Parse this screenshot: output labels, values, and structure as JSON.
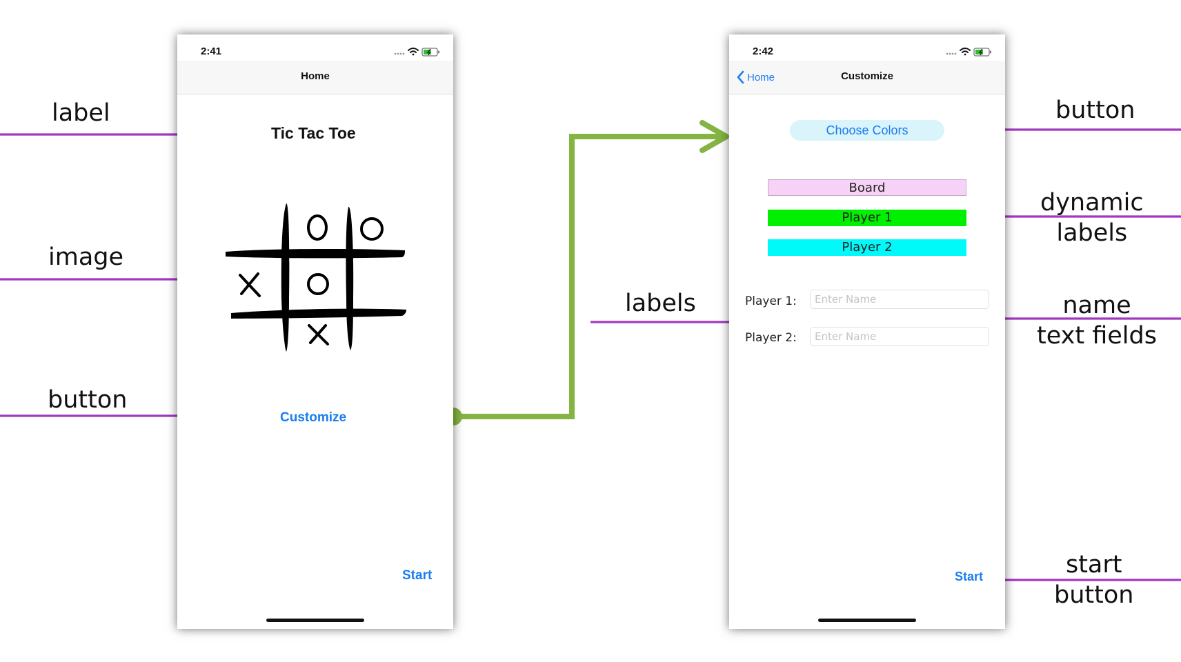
{
  "home_screen": {
    "status_time": "2:41",
    "nav_title": "Home",
    "app_title": "Tic Tac Toe",
    "customize_label": "Customize",
    "start_label": "Start"
  },
  "customize_screen": {
    "status_time": "2:42",
    "back_label": "Home",
    "nav_title": "Customize",
    "choose_colors_label": "Choose Colors",
    "color_labels": [
      "Board",
      "Player 1",
      "Player 2"
    ],
    "player1_label": "Player 1:",
    "player2_label": "Player 2:",
    "name_placeholder": "Enter Name",
    "start_label": "Start"
  },
  "annotations": {
    "label": "label",
    "image": "image",
    "button_left": "button",
    "labels": "labels",
    "button_right": "button",
    "dynamic_labels": [
      "dynamic",
      "labels"
    ],
    "name_text_fields": [
      "name",
      "text fields"
    ],
    "start_button": [
      "start",
      "button"
    ]
  },
  "colors": {
    "annotation_purple": "#a238c0",
    "flow_arrow_green": "#84b442",
    "ios_blue": "#1a7df0",
    "board_color": "#f6d2f7",
    "player1_color": "#00f000",
    "player2_color": "#00fafa"
  },
  "icons": [
    "wifi-icon",
    "battery-icon",
    "signal-dots-icon",
    "chevron-left-icon"
  ]
}
